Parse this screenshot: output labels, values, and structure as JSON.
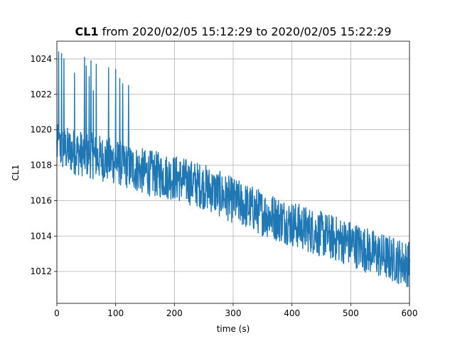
{
  "chart_data": {
    "type": "line",
    "title_bold": "CL1",
    "title_rest": " from 2020/02/05 15:12:29 to 2020/02/05 15:22:29",
    "xlabel": "time (s)",
    "ylabel": "CL1",
    "xlim": [
      0,
      600
    ],
    "ylim": [
      1010.2,
      1025.0
    ],
    "xticks": [
      0,
      100,
      200,
      300,
      400,
      500,
      600
    ],
    "yticks": [
      1012,
      1014,
      1016,
      1018,
      1020,
      1022,
      1024
    ],
    "grid": true,
    "series": [
      {
        "color": "#1f77b4",
        "trend": [
          [
            0,
            1019.0
          ],
          [
            50,
            1018.6
          ],
          [
            100,
            1018.2
          ],
          [
            150,
            1017.6
          ],
          [
            200,
            1017.3
          ],
          [
            250,
            1016.8
          ],
          [
            300,
            1016.0
          ],
          [
            350,
            1015.3
          ],
          [
            400,
            1014.7
          ],
          [
            450,
            1014.1
          ],
          [
            500,
            1013.6
          ],
          [
            550,
            1012.9
          ],
          [
            600,
            1012.4
          ]
        ],
        "spread": 1.3,
        "spikes": [
          [
            3,
            1024.4
          ],
          [
            8,
            1024.3
          ],
          [
            12,
            1024.0
          ],
          [
            30,
            1023.2
          ],
          [
            47,
            1024.1
          ],
          [
            50,
            1023.6
          ],
          [
            55,
            1023.0
          ],
          [
            58,
            1023.9
          ],
          [
            62,
            1022.2
          ],
          [
            67,
            1023.7
          ],
          [
            88,
            1023.5
          ],
          [
            100,
            1023.4
          ],
          [
            107,
            1022.9
          ],
          [
            112,
            1022.6
          ],
          [
            122,
            1022.5
          ]
        ]
      }
    ]
  }
}
